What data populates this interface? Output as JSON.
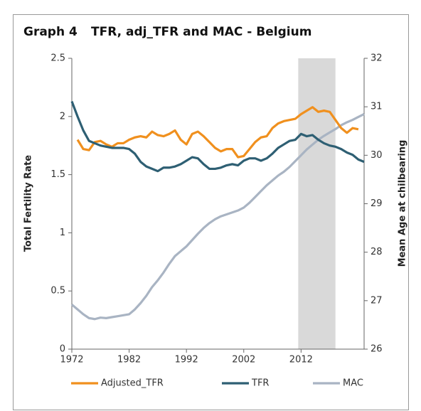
{
  "chart_data": {
    "type": "line",
    "label": "Graph 4",
    "title": "TFR, adj_TFR and MAC - Belgium",
    "y_label": "Total Fertility Rate",
    "y2_label": "Mean Age at chilbearing",
    "x": [
      1972,
      1973,
      1974,
      1975,
      1976,
      1977,
      1978,
      1979,
      1980,
      1981,
      1982,
      1983,
      1984,
      1985,
      1986,
      1987,
      1988,
      1989,
      1990,
      1991,
      1992,
      1993,
      1994,
      1995,
      1996,
      1997,
      1998,
      1999,
      2000,
      2001,
      2002,
      2003,
      2004,
      2005,
      2006,
      2007,
      2008,
      2009,
      2010,
      2011,
      2012,
      2013,
      2014,
      2015,
      2016,
      2017,
      2018,
      2019,
      2020,
      2021,
      2022,
      2023
    ],
    "xlim": [
      1972,
      2023
    ],
    "xticks": [
      1972,
      1982,
      1992,
      2002,
      2012
    ],
    "ylim": [
      0,
      2.5
    ],
    "yticks": [
      0,
      0.5,
      1,
      1.5,
      2,
      2.5
    ],
    "y2lim": [
      26,
      32
    ],
    "y2ticks": [
      26,
      27,
      28,
      29,
      30,
      31,
      32
    ],
    "shaded_x": [
      2011.5,
      2018
    ],
    "series": [
      {
        "name": "Adjusted_TFR",
        "color": "#f0901e",
        "values": [
          null,
          1.8,
          1.72,
          1.71,
          1.78,
          1.79,
          1.76,
          1.74,
          1.77,
          1.77,
          1.8,
          1.82,
          1.83,
          1.82,
          1.87,
          1.84,
          1.83,
          1.85,
          1.88,
          1.8,
          1.76,
          1.85,
          1.87,
          1.83,
          1.78,
          1.73,
          1.7,
          1.72,
          1.72,
          1.65,
          1.66,
          1.72,
          1.78,
          1.82,
          1.83,
          1.9,
          1.94,
          1.96,
          1.97,
          1.98,
          2.02,
          2.05,
          2.08,
          2.04,
          2.05,
          2.04,
          1.97,
          1.9,
          1.86,
          1.9,
          1.89,
          null
        ]
      },
      {
        "name": "TFR",
        "color": "#2e5f73",
        "values": [
          2.13,
          2.0,
          1.88,
          1.79,
          1.77,
          1.75,
          1.74,
          1.73,
          1.73,
          1.73,
          1.72,
          1.68,
          1.61,
          1.57,
          1.55,
          1.53,
          1.56,
          1.56,
          1.57,
          1.59,
          1.62,
          1.65,
          1.64,
          1.59,
          1.55,
          1.55,
          1.56,
          1.58,
          1.59,
          1.58,
          1.62,
          1.64,
          1.64,
          1.62,
          1.64,
          1.68,
          1.73,
          1.76,
          1.79,
          1.8,
          1.85,
          1.83,
          1.84,
          1.8,
          1.77,
          1.75,
          1.74,
          1.72,
          1.69,
          1.67,
          1.63,
          1.61
        ]
      },
      {
        "name": "MAC",
        "color": "#a9b4c3",
        "axis": "y2",
        "values": [
          26.92,
          26.82,
          26.72,
          26.64,
          26.62,
          26.65,
          26.64,
          26.66,
          26.68,
          26.7,
          26.72,
          26.82,
          26.95,
          27.1,
          27.28,
          27.42,
          27.58,
          27.76,
          27.92,
          28.02,
          28.12,
          28.25,
          28.38,
          28.5,
          28.6,
          28.68,
          28.74,
          28.78,
          28.82,
          28.86,
          28.92,
          29.02,
          29.14,
          29.26,
          29.38,
          29.48,
          29.58,
          29.66,
          29.76,
          29.88,
          30.0,
          30.12,
          30.22,
          30.32,
          30.4,
          30.47,
          30.54,
          30.62,
          30.68,
          30.73,
          30.79,
          30.85
        ]
      }
    ]
  }
}
